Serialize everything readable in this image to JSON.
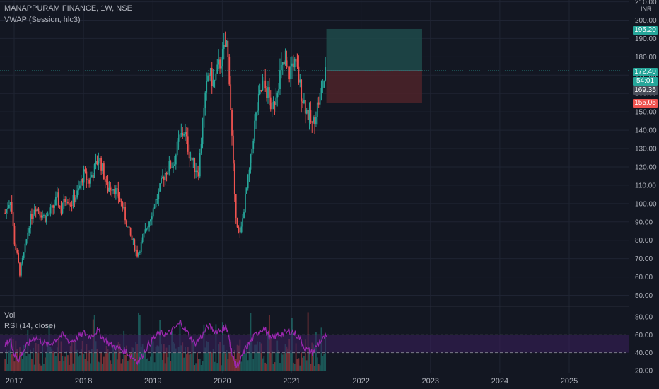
{
  "header": {
    "symbol_title": "MANAPPURAM FINANCE, 1W, NSE",
    "vwap_label": "VWAP (Session, hlc3)",
    "vol_label": "Vol",
    "rsi_label": "RSI (14, close)"
  },
  "colors": {
    "background": "#131722",
    "up": "#26a69a",
    "down": "#ef5350",
    "rsi_line": "#9c27b0",
    "rsi_band": "#3a1f5c",
    "target_zone": "#1e4a4a",
    "stop_zone": "#4a2229"
  },
  "chart_data": [
    {
      "type": "candlestick",
      "title": "MANAPPURAM FINANCE, 1W, NSE",
      "currency": "INR",
      "x_ticks": [
        "2017",
        "2018",
        "2019",
        "2020",
        "2021",
        "2022",
        "2023",
        "2024",
        "2025"
      ],
      "y_ticks": [
        "210.00",
        "200.00",
        "190.00",
        "180.00",
        "170.00",
        "160.00",
        "150.00",
        "140.00",
        "130.00",
        "120.00",
        "110.00",
        "100.00",
        "90.00",
        "80.00",
        "70.00",
        "60.00",
        "50.00"
      ],
      "ylim": [
        45,
        210
      ],
      "xlim": [
        2016.85,
        2025.9
      ],
      "close_path": [
        [
          2016.87,
          95
        ],
        [
          2016.95,
          103
        ],
        [
          2017.0,
          80
        ],
        [
          2017.05,
          70
        ],
        [
          2017.08,
          62
        ],
        [
          2017.15,
          74
        ],
        [
          2017.22,
          90
        ],
        [
          2017.3,
          99
        ],
        [
          2017.38,
          95
        ],
        [
          2017.45,
          92
        ],
        [
          2017.55,
          97
        ],
        [
          2017.62,
          103
        ],
        [
          2017.68,
          96
        ],
        [
          2017.75,
          104
        ],
        [
          2017.82,
          100
        ],
        [
          2017.92,
          106
        ],
        [
          2018.0,
          116
        ],
        [
          2018.08,
          112
        ],
        [
          2018.15,
          118
        ],
        [
          2018.22,
          125
        ],
        [
          2018.28,
          118
        ],
        [
          2018.34,
          108
        ],
        [
          2018.42,
          110
        ],
        [
          2018.5,
          104
        ],
        [
          2018.55,
          100
        ],
        [
          2018.65,
          85
        ],
        [
          2018.72,
          78
        ],
        [
          2018.78,
          72
        ],
        [
          2018.85,
          80
        ],
        [
          2018.92,
          88
        ],
        [
          2019.0,
          97
        ],
        [
          2019.08,
          105
        ],
        [
          2019.15,
          115
        ],
        [
          2019.22,
          120
        ],
        [
          2019.3,
          122
        ],
        [
          2019.38,
          135
        ],
        [
          2019.45,
          140
        ],
        [
          2019.52,
          128
        ],
        [
          2019.6,
          120
        ],
        [
          2019.66,
          118
        ],
        [
          2019.72,
          145
        ],
        [
          2019.8,
          172
        ],
        [
          2019.88,
          165
        ],
        [
          2019.95,
          175
        ],
        [
          2020.02,
          182
        ],
        [
          2020.06,
          188
        ],
        [
          2020.1,
          170
        ],
        [
          2020.14,
          135
        ],
        [
          2020.18,
          100
        ],
        [
          2020.22,
          88
        ],
        [
          2020.26,
          82
        ],
        [
          2020.32,
          100
        ],
        [
          2020.4,
          120
        ],
        [
          2020.46,
          142
        ],
        [
          2020.52,
          155
        ],
        [
          2020.58,
          165
        ],
        [
          2020.66,
          160
        ],
        [
          2020.72,
          150
        ],
        [
          2020.78,
          162
        ],
        [
          2020.84,
          172
        ],
        [
          2020.9,
          176
        ],
        [
          2020.96,
          170
        ],
        [
          2021.02,
          178
        ],
        [
          2021.08,
          172
        ],
        [
          2021.14,
          160
        ],
        [
          2021.22,
          150
        ],
        [
          2021.3,
          142
        ],
        [
          2021.36,
          152
        ],
        [
          2021.42,
          160
        ],
        [
          2021.48,
          170
        ],
        [
          2021.5,
          172.4
        ]
      ],
      "last_price": "172.40",
      "countdown": "54:01",
      "vwap_value": "169.35",
      "position": {
        "entry": 172.4,
        "target": 195.2,
        "stop": 155.05,
        "target_label": "195.20",
        "stop_label": "155.05",
        "x_start": 2021.5,
        "x_end": 2022.88
      }
    },
    {
      "type": "line",
      "title": "RSI (14, close)",
      "y_ticks": [
        "80.00",
        "60.00",
        "40.00",
        "20.00"
      ],
      "ylim": [
        18,
        88
      ],
      "overbought": 60,
      "oversold": 40,
      "series": [
        {
          "x": [
            2016.87,
            2016.95,
            2017.0,
            2017.06,
            2017.12,
            2017.2,
            2017.3,
            2017.4,
            2017.5,
            2017.6,
            2017.7,
            2017.8,
            2017.9,
            2018.0,
            2018.1,
            2018.2,
            2018.3,
            2018.4,
            2018.5,
            2018.6,
            2018.7,
            2018.8,
            2018.9,
            2019.0,
            2019.1,
            2019.2,
            2019.3,
            2019.4,
            2019.5,
            2019.6,
            2019.7,
            2019.8,
            2019.9,
            2020.0,
            2020.05,
            2020.1,
            2020.15,
            2020.2,
            2020.25,
            2020.3,
            2020.4,
            2020.5,
            2020.6,
            2020.7,
            2020.8,
            2020.9,
            2021.0,
            2021.1,
            2021.2,
            2021.3,
            2021.4,
            2021.5
          ],
          "values": [
            48,
            55,
            38,
            32,
            40,
            50,
            58,
            52,
            48,
            55,
            60,
            52,
            56,
            62,
            58,
            65,
            55,
            48,
            45,
            42,
            35,
            30,
            45,
            55,
            62,
            60,
            66,
            74,
            62,
            50,
            58,
            70,
            64,
            66,
            70,
            55,
            35,
            25,
            28,
            40,
            52,
            62,
            68,
            55,
            60,
            62,
            64,
            58,
            44,
            40,
            52,
            58
          ]
        }
      ]
    },
    {
      "type": "bar",
      "title": "Vol",
      "note": "weekly volume bars, colored by candle direction"
    }
  ]
}
